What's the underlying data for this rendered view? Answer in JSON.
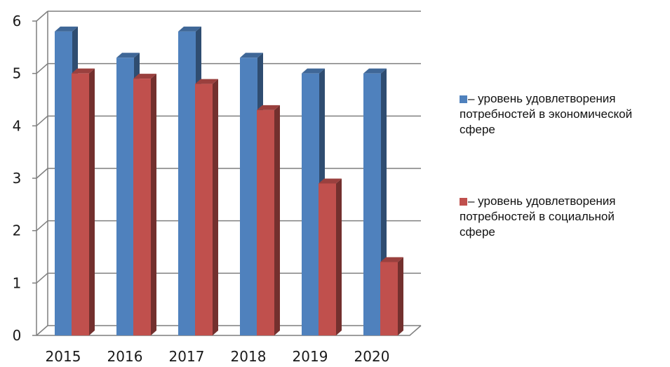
{
  "chart_data": {
    "type": "bar",
    "categories": [
      "2015",
      "2016",
      "2017",
      "2018",
      "2019",
      "2020"
    ],
    "series": [
      {
        "label": "– уровень удовлетворения\nпотребностей в экономической\nсфере",
        "color": "#4f81bd",
        "values": [
          5.8,
          5.3,
          5.8,
          5.3,
          5.0,
          5.0
        ]
      },
      {
        "label": "– уровень удовлетворения\nпотребностей в социальной\nсфере",
        "color": "#c0504d",
        "values": [
          5.0,
          4.9,
          4.8,
          4.3,
          2.9,
          1.4
        ]
      }
    ],
    "ylim": [
      0,
      6
    ],
    "yticks": [
      "0",
      "1",
      "2",
      "3",
      "4",
      "5",
      "6"
    ],
    "grid": true,
    "legend_position": "right"
  }
}
